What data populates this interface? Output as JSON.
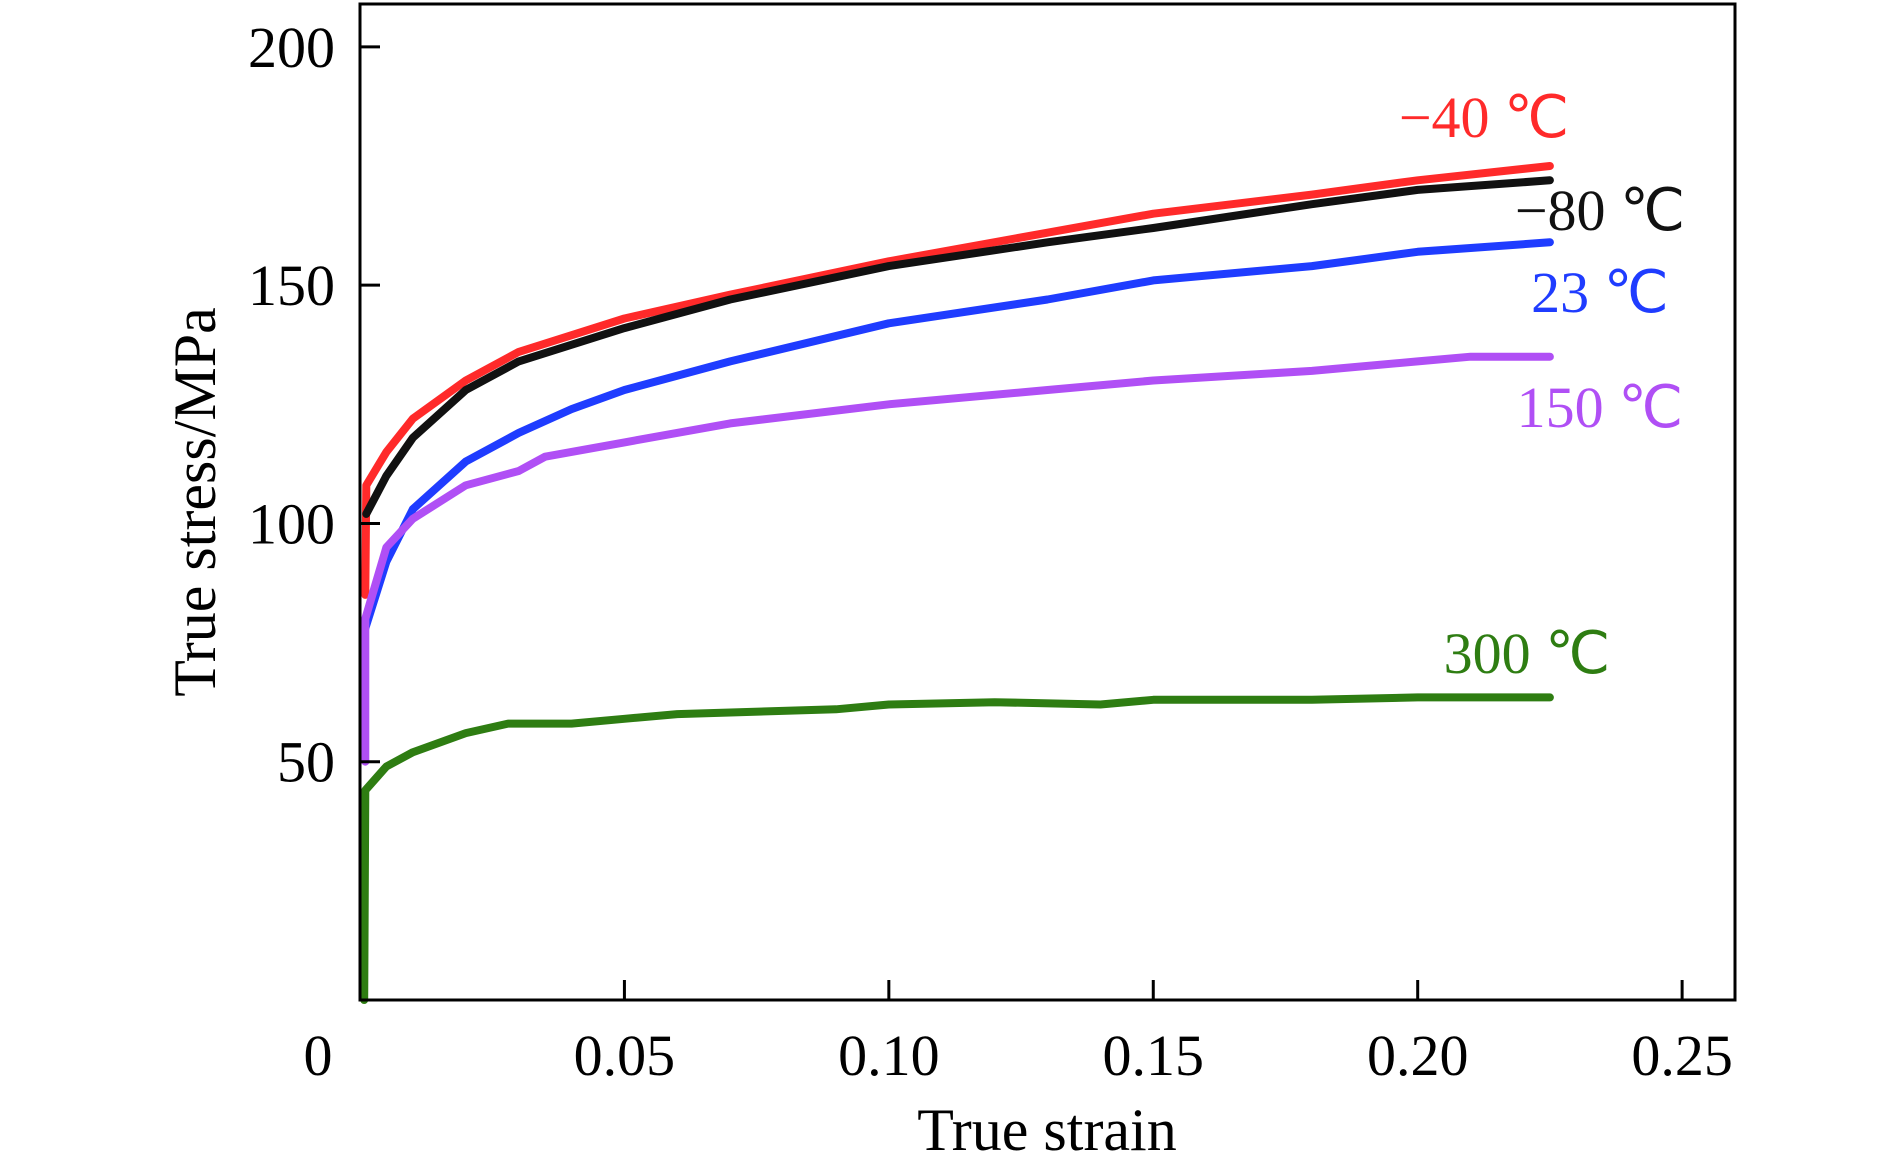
{
  "chart_data": {
    "type": "line",
    "title": "",
    "xlabel": "True strain",
    "ylabel": "True stress/MPa",
    "xlim": [
      0,
      0.26
    ],
    "ylim": [
      0,
      209
    ],
    "xticks": [
      0,
      0.05,
      0.1,
      0.15,
      0.2,
      0.25
    ],
    "xtick_labels": [
      "0",
      "0.05",
      "0.10",
      "0.15",
      "0.20",
      "0.25"
    ],
    "yticks": [
      50,
      100,
      150,
      200
    ],
    "ytick_labels": [
      "50",
      "100",
      "150",
      "200"
    ],
    "grid": false,
    "legend": "inline labels at curve ends",
    "series": [
      {
        "name": "−40 ℃",
        "color": "#ff2a2a",
        "x": [
          0.001,
          0.0012,
          0.005,
          0.01,
          0.02,
          0.03,
          0.05,
          0.07,
          0.1,
          0.13,
          0.15,
          0.18,
          0.2,
          0.225
        ],
        "y": [
          85,
          108,
          115,
          122,
          130,
          136,
          143,
          148,
          155,
          161,
          165,
          169,
          172,
          175
        ]
      },
      {
        "name": "−80 ℃",
        "color": "#111111",
        "x": [
          0.0012,
          0.005,
          0.01,
          0.02,
          0.03,
          0.05,
          0.07,
          0.1,
          0.13,
          0.15,
          0.18,
          0.2,
          0.225
        ],
        "y": [
          102,
          110,
          118,
          128,
          134,
          141,
          147,
          154,
          159,
          162,
          167,
          170,
          172
        ]
      },
      {
        "name": "23 ℃",
        "color": "#1f3cff",
        "x": [
          0.001,
          0.005,
          0.01,
          0.02,
          0.03,
          0.04,
          0.05,
          0.07,
          0.1,
          0.13,
          0.15,
          0.18,
          0.2,
          0.225
        ],
        "y": [
          78,
          92,
          103,
          113,
          119,
          124,
          128,
          134,
          142,
          147,
          151,
          154,
          157,
          159
        ]
      },
      {
        "name": "150 ℃",
        "color": "#b04ff5",
        "x": [
          0.001,
          0.001,
          0.005,
          0.01,
          0.02,
          0.03,
          0.035,
          0.05,
          0.07,
          0.1,
          0.13,
          0.15,
          0.18,
          0.2,
          0.21,
          0.225
        ],
        "y": [
          50,
          80,
          95,
          101,
          108,
          111,
          114,
          117,
          121,
          125,
          128,
          130,
          132,
          134,
          135,
          135
        ]
      },
      {
        "name": "300 ℃",
        "color": "#2e7d12",
        "x": [
          0.0008,
          0.001,
          0.005,
          0.01,
          0.02,
          0.028,
          0.04,
          0.05,
          0.06,
          0.09,
          0.1,
          0.12,
          0.14,
          0.15,
          0.18,
          0.2,
          0.225
        ],
        "y": [
          0,
          44,
          49,
          52,
          56,
          58,
          58,
          59,
          60,
          61,
          62,
          62.5,
          62,
          63,
          63,
          63.5,
          63.5
        ]
      }
    ]
  }
}
